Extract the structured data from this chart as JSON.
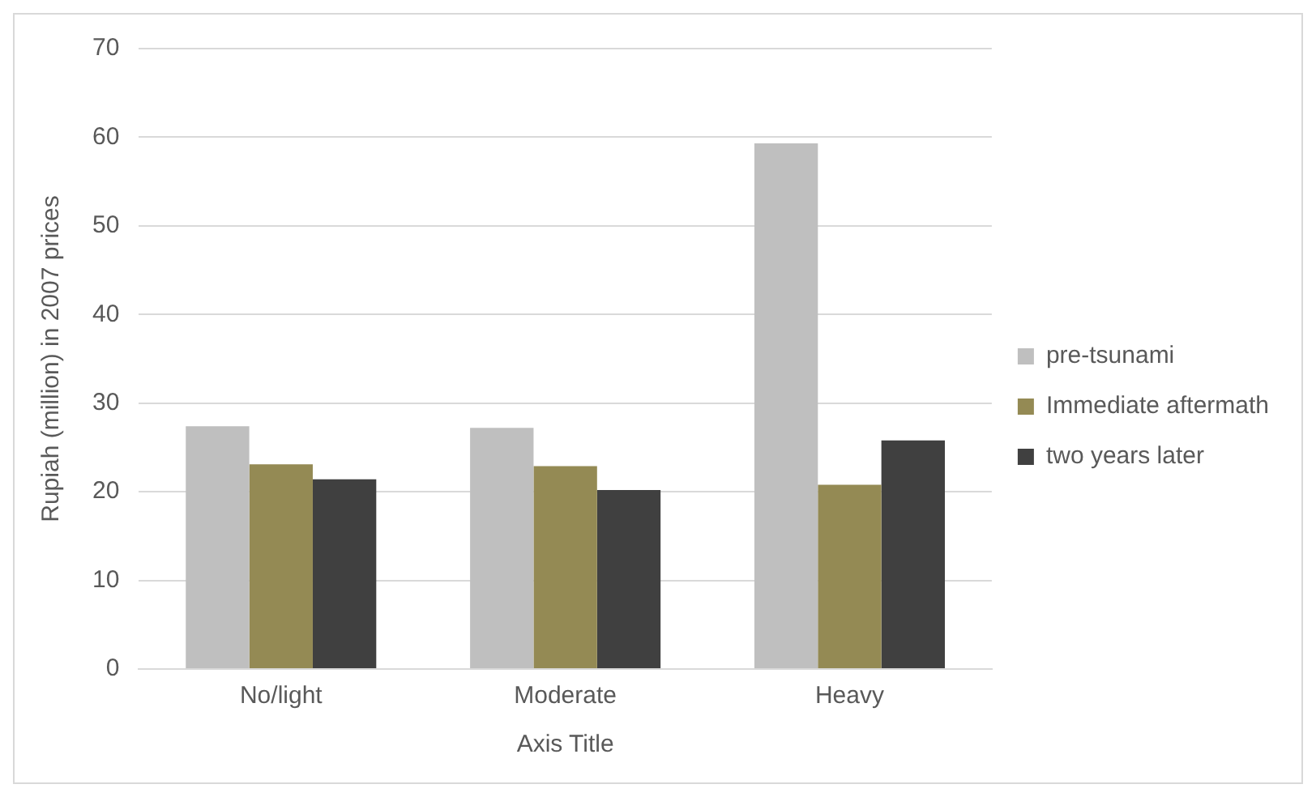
{
  "chart_data": {
    "type": "bar",
    "xlabel": "Axis Title",
    "ylabel": "Rupiah (million) in 2007 prices",
    "categories": [
      "No/light",
      "Moderate",
      "Heavy"
    ],
    "series": [
      {
        "name": "pre-tsunami",
        "color": "#bfbfbf",
        "values": [
          27.4,
          27.2,
          59.3
        ]
      },
      {
        "name": "Immediate aftermath",
        "color": "#948a54",
        "values": [
          23.1,
          22.9,
          20.8
        ]
      },
      {
        "name": "two years later",
        "color": "#404040",
        "values": [
          21.4,
          20.2,
          25.8
        ]
      }
    ],
    "ylim": [
      0,
      70
    ],
    "yticks": [
      0,
      10,
      20,
      30,
      40,
      50,
      60,
      70
    ],
    "grid": "y",
    "legend": "right"
  }
}
